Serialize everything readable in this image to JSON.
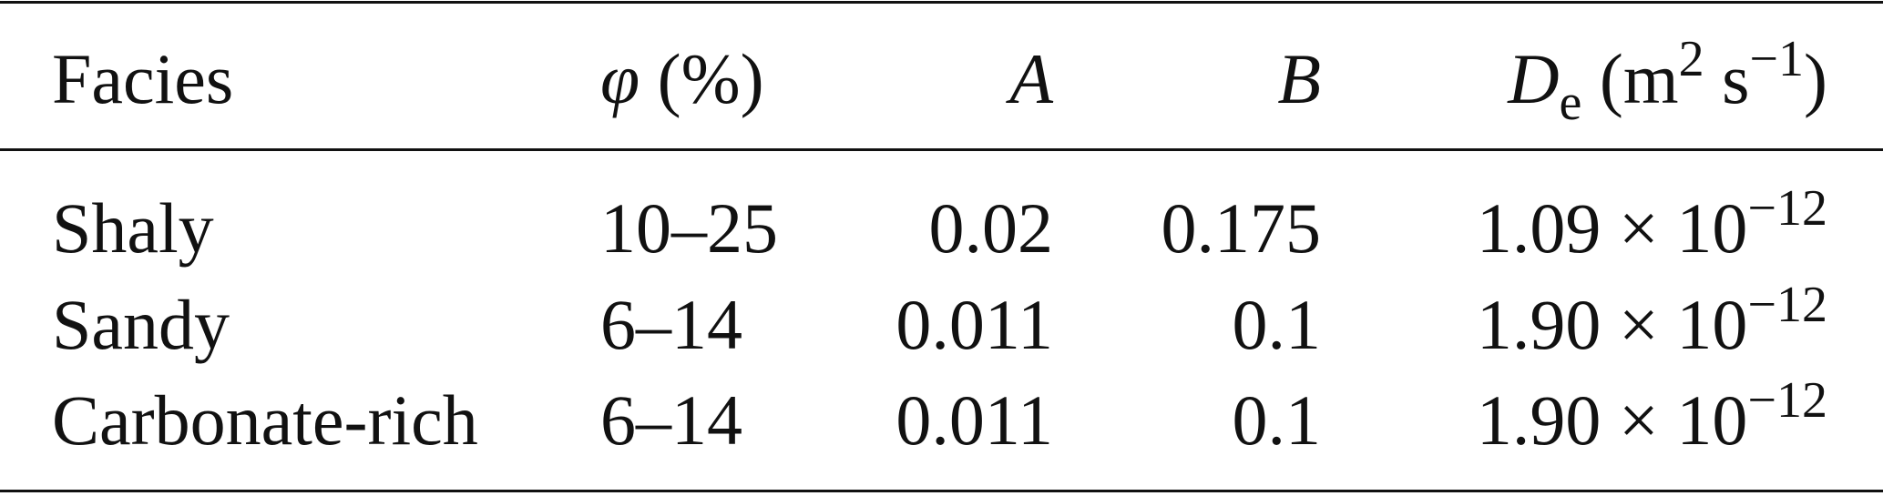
{
  "table": {
    "header": [
      [
        "Facies"
      ],
      [
        "φ",
        " (%)"
      ],
      [
        "A"
      ],
      [
        "B"
      ],
      [
        "D",
        "e",
        " (m",
        "2",
        " s",
        "−1",
        ")"
      ]
    ],
    "rows": [
      [
        "Shaly",
        "10–25",
        "0.02",
        "0.175",
        [
          "1.09 × 10",
          "−12"
        ]
      ],
      [
        "Sandy",
        "6–14",
        "0.011",
        "0.1",
        [
          "1.90 × 10",
          "−12"
        ]
      ],
      [
        "Carbonate-rich",
        "6–14",
        "0.011",
        "0.1",
        [
          "1.90 × 10",
          "−12"
        ]
      ]
    ]
  }
}
